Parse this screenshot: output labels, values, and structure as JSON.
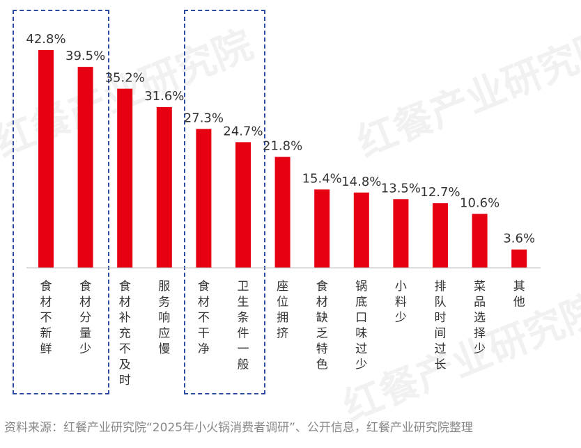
{
  "chart_data": {
    "type": "bar",
    "categories": [
      "食材不新鲜",
      "食材分量少",
      "食材补充不及时",
      "服务响应慢",
      "食材不干净",
      "卫生条件一般",
      "座位拥挤",
      "食材缺乏特色",
      "锅底口味过少",
      "小料少",
      "排队时间过长",
      "菜品选择少",
      "其他"
    ],
    "values": [
      42.8,
      39.5,
      35.2,
      31.6,
      27.3,
      24.7,
      21.8,
      15.4,
      14.8,
      13.5,
      12.7,
      10.6,
      3.6
    ],
    "value_labels": [
      "42.8%",
      "39.5%",
      "35.2%",
      "31.6%",
      "27.3%",
      "24.7%",
      "21.8%",
      "15.4%",
      "14.8%",
      "13.5%",
      "12.7%",
      "10.6%",
      "3.6%"
    ],
    "unit": "%",
    "ylim": [
      0,
      45
    ],
    "grid": false,
    "highlighted_groups": [
      [
        "食材不新鲜",
        "食材分量少"
      ],
      [
        "食材不干净",
        "卫生条件一般"
      ]
    ],
    "bar_color": "#e60012",
    "highlight_border_color": "#2b4aa0"
  },
  "source": "资料来源：红餐产业研究院“2025年小火锅消费者调研”、公开信息，红餐产业研究院整理",
  "watermark": "红餐产业研究院"
}
